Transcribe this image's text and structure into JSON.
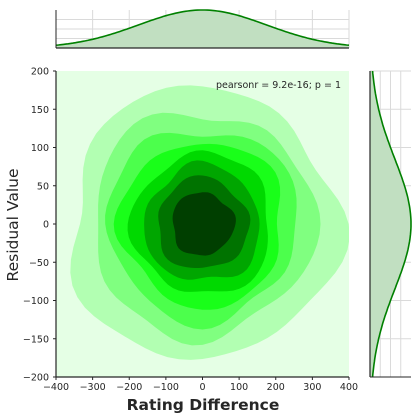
{
  "chart_data": {
    "type": "jointplot-kde",
    "xlabel": "Rating Difference",
    "ylabel": "Residual Value",
    "xlim": [
      -400,
      400
    ],
    "ylim": [
      -200,
      200
    ],
    "x_ticks": [
      -400,
      -300,
      -200,
      -100,
      0,
      100,
      200,
      300,
      400
    ],
    "y_ticks": [
      -200,
      -150,
      -100,
      -50,
      0,
      50,
      100,
      150,
      200
    ],
    "annotation": "pearsonr = 9.2e-16; p = 1",
    "joint_density": {
      "center": [
        0,
        0
      ],
      "sx": 175,
      "sy": 85,
      "levels": 8,
      "colors": [
        "#e5ffe5",
        "#b2ffb2",
        "#80ff80",
        "#4cff4c",
        "#19ff19",
        "#00d900",
        "#00a600",
        "#007300",
        "#003f00"
      ]
    },
    "marginal_x": {
      "center": 0,
      "sd": 175,
      "color": "#008000",
      "fill": "#c1dfc1"
    },
    "marginal_y": {
      "center": 0,
      "sd": 85,
      "color": "#008000",
      "fill": "#c1dfc1"
    },
    "grid": true
  }
}
